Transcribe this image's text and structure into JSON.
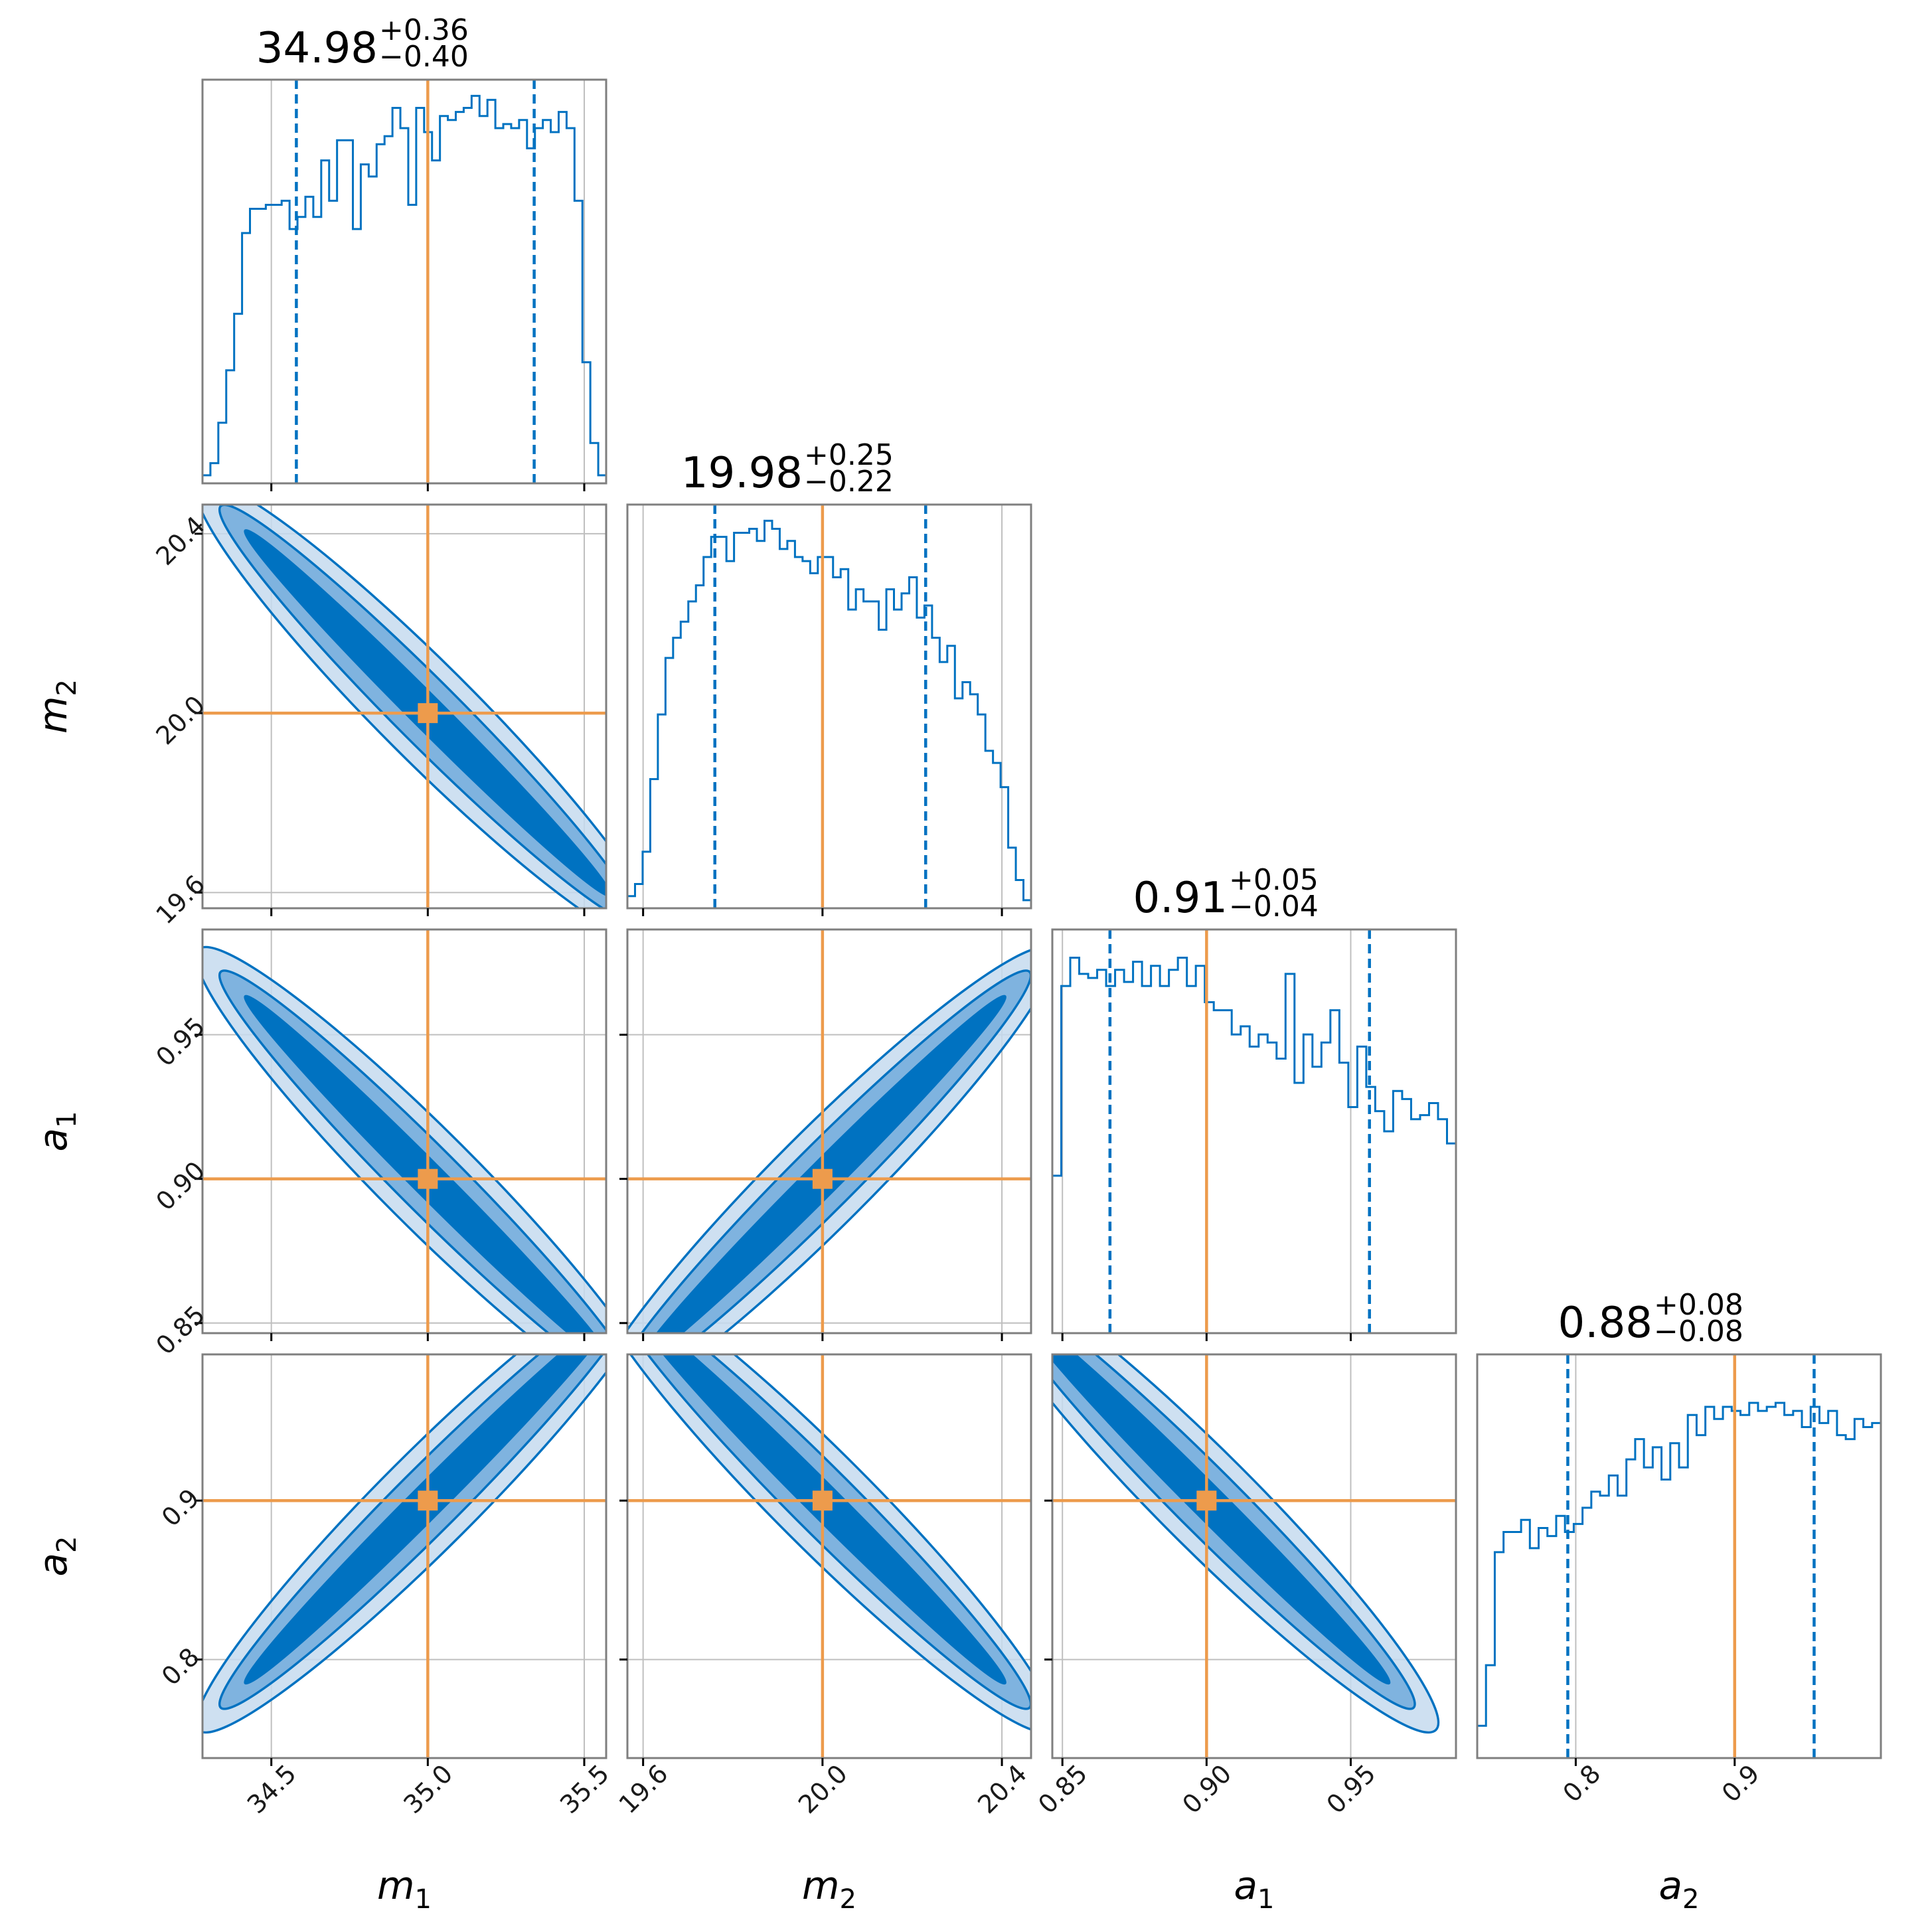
{
  "chart_data": {
    "type": "corner",
    "parameters": [
      {
        "symbol": "m",
        "subscript": "1",
        "range": [
          34.28,
          35.57
        ],
        "ticks": [
          34.5,
          35.0,
          35.5
        ],
        "tick_labels": [
          "34.5",
          "35.0",
          "35.5"
        ],
        "truth": 35.0,
        "median": 34.98,
        "plus": "+0.36",
        "minus": "−0.40",
        "median_label": "34.98",
        "quantiles": [
          34.58,
          35.34
        ]
      },
      {
        "symbol": "m",
        "subscript": "2",
        "range": [
          19.565,
          20.465
        ],
        "ticks": [
          19.6,
          20.0,
          20.4
        ],
        "tick_labels": [
          "19.6",
          "20.0",
          "20.4"
        ],
        "truth": 20.0,
        "median": 19.98,
        "plus": "+0.25",
        "minus": "−0.22",
        "median_label": "19.98",
        "quantiles": [
          19.76,
          20.23
        ]
      },
      {
        "symbol": "a",
        "subscript": "1",
        "range": [
          0.8465,
          0.9865
        ],
        "ticks": [
          0.85,
          0.9,
          0.95
        ],
        "tick_labels": [
          "0.85",
          "0.90",
          "0.95"
        ],
        "truth": 0.9,
        "median": 0.91,
        "plus": "+0.05",
        "minus": "−0.04",
        "median_label": "0.91",
        "quantiles": [
          0.8665,
          0.9565
        ]
      },
      {
        "symbol": "a",
        "subscript": "2",
        "range": [
          0.738,
          0.992
        ],
        "ticks": [
          0.8,
          0.9
        ],
        "tick_labels": [
          "0.8",
          "0.9"
        ],
        "truth": 0.9,
        "median": 0.88,
        "plus": "+0.08",
        "minus": "−0.08",
        "median_label": "0.88",
        "quantiles": [
          0.795,
          0.95
        ]
      }
    ],
    "histograms": [
      [
        0.02,
        0.05,
        0.15,
        0.28,
        0.42,
        0.62,
        0.68,
        0.68,
        0.69,
        0.69,
        0.7,
        0.63,
        0.66,
        0.71,
        0.66,
        0.8,
        0.7,
        0.85,
        0.85,
        0.63,
        0.79,
        0.76,
        0.84,
        0.86,
        0.93,
        0.88,
        0.69,
        0.93,
        0.87,
        0.8,
        0.91,
        0.9,
        0.92,
        0.93,
        0.96,
        0.91,
        0.95,
        0.88,
        0.89,
        0.88,
        0.9,
        0.83,
        0.88,
        0.9,
        0.87,
        0.92,
        0.88,
        0.7,
        0.3,
        0.1,
        0.02
      ],
      [
        0.03,
        0.06,
        0.14,
        0.32,
        0.48,
        0.62,
        0.67,
        0.71,
        0.76,
        0.8,
        0.87,
        0.92,
        0.92,
        0.86,
        0.93,
        0.93,
        0.94,
        0.91,
        0.96,
        0.94,
        0.89,
        0.91,
        0.87,
        0.86,
        0.83,
        0.87,
        0.87,
        0.82,
        0.84,
        0.74,
        0.79,
        0.76,
        0.76,
        0.69,
        0.79,
        0.74,
        0.78,
        0.82,
        0.72,
        0.75,
        0.67,
        0.61,
        0.65,
        0.52,
        0.56,
        0.53,
        0.48,
        0.39,
        0.36,
        0.3,
        0.15,
        0.07,
        0.02
      ],
      [
        0.39,
        0.86,
        0.93,
        0.89,
        0.88,
        0.9,
        0.86,
        0.9,
        0.87,
        0.92,
        0.86,
        0.91,
        0.86,
        0.9,
        0.93,
        0.86,
        0.91,
        0.82,
        0.8,
        0.8,
        0.74,
        0.76,
        0.71,
        0.74,
        0.72,
        0.68,
        0.89,
        0.62,
        0.74,
        0.66,
        0.72,
        0.8,
        0.67,
        0.56,
        0.71,
        0.61,
        0.55,
        0.5,
        0.6,
        0.58,
        0.53,
        0.54,
        0.57,
        0.53,
        0.47
      ],
      [
        0.08,
        0.23,
        0.51,
        0.56,
        0.56,
        0.59,
        0.52,
        0.57,
        0.55,
        0.6,
        0.56,
        0.58,
        0.62,
        0.66,
        0.65,
        0.7,
        0.65,
        0.74,
        0.79,
        0.72,
        0.77,
        0.69,
        0.78,
        0.72,
        0.85,
        0.8,
        0.87,
        0.84,
        0.87,
        0.86,
        0.85,
        0.88,
        0.86,
        0.87,
        0.88,
        0.85,
        0.86,
        0.82,
        0.87,
        0.83,
        0.86,
        0.8,
        0.79,
        0.84,
        0.82,
        0.83
      ]
    ],
    "correlations": {
      "1-0": -0.985,
      "2-0": -0.985,
      "2-1": 0.985,
      "3-0": 0.985,
      "3-1": -0.985,
      "3-2": -0.985
    },
    "colors": {
      "posterior": "#0072c1",
      "truth": "#ed9b4c",
      "frame": "#7f7f7f",
      "grid": "#bfbfbf"
    },
    "grid": true
  }
}
